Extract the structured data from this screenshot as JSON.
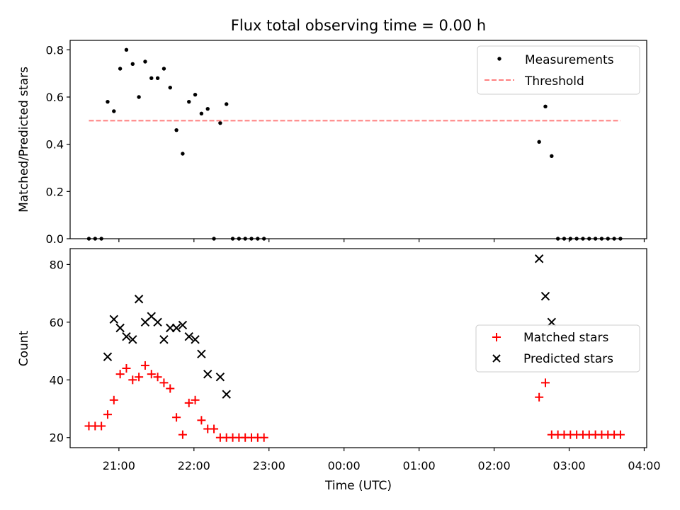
{
  "chart_data": {
    "title": "Flux total observing time = 0.00 h",
    "x_label": "Time (UTC)",
    "x_axis": {
      "type": "time",
      "range": [
        "2024-01-01T20:21:00",
        "2024-01-02T04:02:00"
      ],
      "ticks": [
        {
          "value": "2024-01-01T21:00:00",
          "label": "21:00"
        },
        {
          "value": "2024-01-01T22:00:00",
          "label": "22:00"
        },
        {
          "value": "2024-01-01T23:00:00",
          "label": "23:00"
        },
        {
          "value": "2024-01-02T00:00:00",
          "label": "00:00"
        },
        {
          "value": "2024-01-02T01:00:00",
          "label": "01:00"
        },
        {
          "value": "2024-01-02T02:00:00",
          "label": "02:00"
        },
        {
          "value": "2024-01-02T03:00:00",
          "label": "03:00"
        },
        {
          "value": "2024-01-02T04:00:00",
          "label": "04:00"
        }
      ]
    },
    "panels": [
      {
        "type": "scatter",
        "ylabel": "Matched/Predicted stars",
        "ylim": [
          0,
          0.84
        ],
        "yticks": [
          {
            "value": 0,
            "label": "0.0"
          },
          {
            "value": 0.2,
            "label": "0.2"
          },
          {
            "value": 0.4,
            "label": "0.4"
          },
          {
            "value": 0.6,
            "label": "0.6"
          },
          {
            "value": 0.8,
            "label": "0.8"
          }
        ],
        "legend_position": "top-right",
        "series": [
          {
            "name": "Measurements",
            "kind": "dot",
            "color": "#000000",
            "points": [
              [
                "2024-01-01T20:36:00",
                0
              ],
              [
                "2024-01-01T20:41:00",
                0
              ],
              [
                "2024-01-01T20:46:00",
                0
              ],
              [
                "2024-01-01T20:51:00",
                0.58
              ],
              [
                "2024-01-01T20:56:00",
                0.54
              ],
              [
                "2024-01-01T21:01:00",
                0.72
              ],
              [
                "2024-01-01T21:06:00",
                0.8
              ],
              [
                "2024-01-01T21:11:00",
                0.74
              ],
              [
                "2024-01-01T21:16:00",
                0.6
              ],
              [
                "2024-01-01T21:21:00",
                0.75
              ],
              [
                "2024-01-01T21:26:00",
                0.68
              ],
              [
                "2024-01-01T21:31:00",
                0.68
              ],
              [
                "2024-01-01T21:36:00",
                0.72
              ],
              [
                "2024-01-01T21:41:00",
                0.64
              ],
              [
                "2024-01-01T21:46:00",
                0.46
              ],
              [
                "2024-01-01T21:51:00",
                0.36
              ],
              [
                "2024-01-01T21:56:00",
                0.58
              ],
              [
                "2024-01-01T22:01:00",
                0.61
              ],
              [
                "2024-01-01T22:06:00",
                0.53
              ],
              [
                "2024-01-01T22:11:00",
                0.55
              ],
              [
                "2024-01-01T22:16:00",
                0
              ],
              [
                "2024-01-01T22:21:00",
                0.49
              ],
              [
                "2024-01-01T22:26:00",
                0.57
              ],
              [
                "2024-01-01T22:31:00",
                0
              ],
              [
                "2024-01-01T22:36:00",
                0
              ],
              [
                "2024-01-01T22:41:00",
                0
              ],
              [
                "2024-01-01T22:46:00",
                0
              ],
              [
                "2024-01-01T22:51:00",
                0
              ],
              [
                "2024-01-01T22:56:00",
                0
              ],
              [
                "2024-01-02T02:36:00",
                0.41
              ],
              [
                "2024-01-02T02:41:00",
                0.56
              ],
              [
                "2024-01-02T02:46:00",
                0.35
              ],
              [
                "2024-01-02T02:51:00",
                0
              ],
              [
                "2024-01-02T02:56:00",
                0
              ],
              [
                "2024-01-02T03:01:00",
                0
              ],
              [
                "2024-01-02T03:06:00",
                0
              ],
              [
                "2024-01-02T03:11:00",
                0
              ],
              [
                "2024-01-02T03:16:00",
                0
              ],
              [
                "2024-01-02T03:21:00",
                0
              ],
              [
                "2024-01-02T03:26:00",
                0
              ],
              [
                "2024-01-02T03:31:00",
                0
              ],
              [
                "2024-01-02T03:36:00",
                0
              ],
              [
                "2024-01-02T03:41:00",
                0
              ]
            ]
          },
          {
            "name": "Threshold",
            "kind": "dashed-line",
            "color": "#ff8080",
            "points": [
              [
                "2024-01-01T20:36:00",
                0.5
              ],
              [
                "2024-01-02T03:41:00",
                0.5
              ]
            ]
          }
        ]
      },
      {
        "type": "scatter",
        "ylabel": "Count",
        "ylim": [
          16.5,
          85.5
        ],
        "yticks": [
          {
            "value": 20,
            "label": "20"
          },
          {
            "value": 40,
            "label": "40"
          },
          {
            "value": 60,
            "label": "60"
          },
          {
            "value": 80,
            "label": "80"
          }
        ],
        "legend_position": "center-right",
        "series": [
          {
            "name": "Matched stars",
            "kind": "plus",
            "color": "#ff0000",
            "points": [
              [
                "2024-01-01T20:36:00",
                24
              ],
              [
                "2024-01-01T20:41:00",
                24
              ],
              [
                "2024-01-01T20:46:00",
                24
              ],
              [
                "2024-01-01T20:51:00",
                28
              ],
              [
                "2024-01-01T20:56:00",
                33
              ],
              [
                "2024-01-01T21:01:00",
                42
              ],
              [
                "2024-01-01T21:06:00",
                44
              ],
              [
                "2024-01-01T21:11:00",
                40
              ],
              [
                "2024-01-01T21:16:00",
                41
              ],
              [
                "2024-01-01T21:21:00",
                45
              ],
              [
                "2024-01-01T21:26:00",
                42
              ],
              [
                "2024-01-01T21:31:00",
                41
              ],
              [
                "2024-01-01T21:36:00",
                39
              ],
              [
                "2024-01-01T21:41:00",
                37
              ],
              [
                "2024-01-01T21:46:00",
                27
              ],
              [
                "2024-01-01T21:51:00",
                21
              ],
              [
                "2024-01-01T21:56:00",
                32
              ],
              [
                "2024-01-01T22:01:00",
                33
              ],
              [
                "2024-01-01T22:06:00",
                26
              ],
              [
                "2024-01-01T22:11:00",
                23
              ],
              [
                "2024-01-01T22:16:00",
                23
              ],
              [
                "2024-01-01T22:21:00",
                20
              ],
              [
                "2024-01-01T22:26:00",
                20
              ],
              [
                "2024-01-01T22:31:00",
                20
              ],
              [
                "2024-01-01T22:36:00",
                20
              ],
              [
                "2024-01-01T22:41:00",
                20
              ],
              [
                "2024-01-01T22:46:00",
                20
              ],
              [
                "2024-01-01T22:51:00",
                20
              ],
              [
                "2024-01-01T22:56:00",
                20
              ],
              [
                "2024-01-02T02:36:00",
                34
              ],
              [
                "2024-01-02T02:41:00",
                39
              ],
              [
                "2024-01-02T02:46:00",
                21
              ],
              [
                "2024-01-02T02:51:00",
                21
              ],
              [
                "2024-01-02T02:56:00",
                21
              ],
              [
                "2024-01-02T03:01:00",
                21
              ],
              [
                "2024-01-02T03:06:00",
                21
              ],
              [
                "2024-01-02T03:11:00",
                21
              ],
              [
                "2024-01-02T03:16:00",
                21
              ],
              [
                "2024-01-02T03:21:00",
                21
              ],
              [
                "2024-01-02T03:26:00",
                21
              ],
              [
                "2024-01-02T03:31:00",
                21
              ],
              [
                "2024-01-02T03:36:00",
                21
              ],
              [
                "2024-01-02T03:41:00",
                21
              ]
            ]
          },
          {
            "name": "Predicted stars",
            "kind": "x",
            "color": "#000000",
            "points": [
              [
                "2024-01-01T20:51:00",
                48
              ],
              [
                "2024-01-01T20:56:00",
                61
              ],
              [
                "2024-01-01T21:01:00",
                58
              ],
              [
                "2024-01-01T21:06:00",
                55
              ],
              [
                "2024-01-01T21:11:00",
                54
              ],
              [
                "2024-01-01T21:16:00",
                68
              ],
              [
                "2024-01-01T21:21:00",
                60
              ],
              [
                "2024-01-01T21:26:00",
                62
              ],
              [
                "2024-01-01T21:31:00",
                60
              ],
              [
                "2024-01-01T21:36:00",
                54
              ],
              [
                "2024-01-01T21:41:00",
                58
              ],
              [
                "2024-01-01T21:46:00",
                58
              ],
              [
                "2024-01-01T21:51:00",
                59
              ],
              [
                "2024-01-01T21:56:00",
                55
              ],
              [
                "2024-01-01T22:01:00",
                54
              ],
              [
                "2024-01-01T22:06:00",
                49
              ],
              [
                "2024-01-01T22:11:00",
                42
              ],
              [
                "2024-01-01T22:21:00",
                41
              ],
              [
                "2024-01-01T22:26:00",
                35
              ],
              [
                "2024-01-02T02:36:00",
                82
              ],
              [
                "2024-01-02T02:41:00",
                69
              ],
              [
                "2024-01-02T02:46:00",
                60
              ]
            ]
          }
        ]
      }
    ]
  }
}
